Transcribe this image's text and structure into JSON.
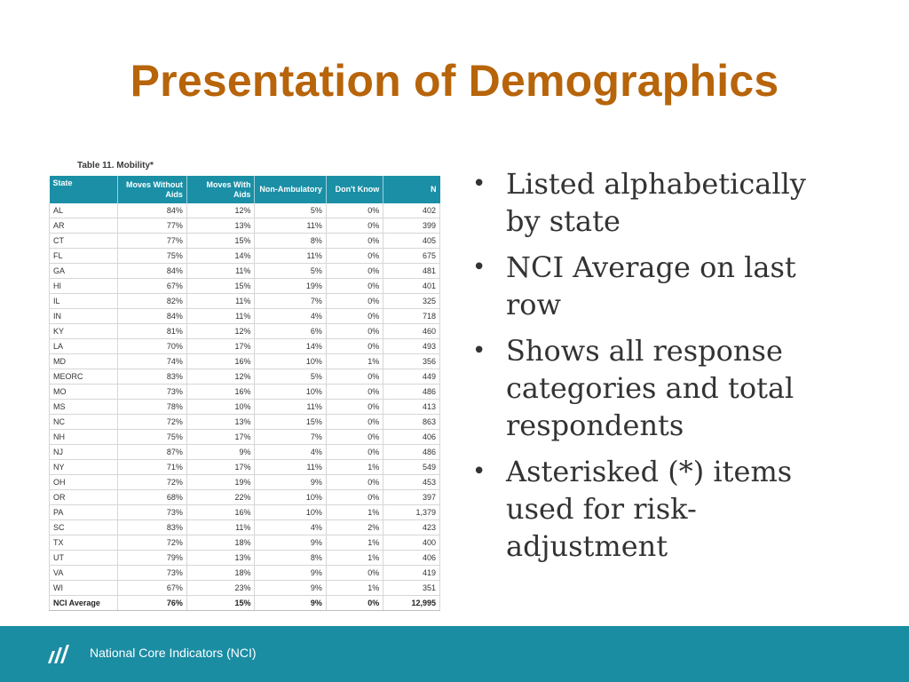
{
  "slide": {
    "title": "Presentation of Demographics"
  },
  "table": {
    "caption": "Table 11. Mobility*",
    "headers": [
      "State",
      "Moves Without Aids",
      "Moves With Aids",
      "Non-Ambulatory",
      "Don't Know",
      "N"
    ],
    "rows": [
      [
        "AL",
        "84%",
        "12%",
        "5%",
        "0%",
        "402"
      ],
      [
        "AR",
        "77%",
        "13%",
        "11%",
        "0%",
        "399"
      ],
      [
        "CT",
        "77%",
        "15%",
        "8%",
        "0%",
        "405"
      ],
      [
        "FL",
        "75%",
        "14%",
        "11%",
        "0%",
        "675"
      ],
      [
        "GA",
        "84%",
        "11%",
        "5%",
        "0%",
        "481"
      ],
      [
        "HI",
        "67%",
        "15%",
        "19%",
        "0%",
        "401"
      ],
      [
        "IL",
        "82%",
        "11%",
        "7%",
        "0%",
        "325"
      ],
      [
        "IN",
        "84%",
        "11%",
        "4%",
        "0%",
        "718"
      ],
      [
        "KY",
        "81%",
        "12%",
        "6%",
        "0%",
        "460"
      ],
      [
        "LA",
        "70%",
        "17%",
        "14%",
        "0%",
        "493"
      ],
      [
        "MD",
        "74%",
        "16%",
        "10%",
        "1%",
        "356"
      ],
      [
        "MEORC",
        "83%",
        "12%",
        "5%",
        "0%",
        "449"
      ],
      [
        "MO",
        "73%",
        "16%",
        "10%",
        "0%",
        "486"
      ],
      [
        "MS",
        "78%",
        "10%",
        "11%",
        "0%",
        "413"
      ],
      [
        "NC",
        "72%",
        "13%",
        "15%",
        "0%",
        "863"
      ],
      [
        "NH",
        "75%",
        "17%",
        "7%",
        "0%",
        "406"
      ],
      [
        "NJ",
        "87%",
        "9%",
        "4%",
        "0%",
        "486"
      ],
      [
        "NY",
        "71%",
        "17%",
        "11%",
        "1%",
        "549"
      ],
      [
        "OH",
        "72%",
        "19%",
        "9%",
        "0%",
        "453"
      ],
      [
        "OR",
        "68%",
        "22%",
        "10%",
        "0%",
        "397"
      ],
      [
        "PA",
        "73%",
        "16%",
        "10%",
        "1%",
        "1,379"
      ],
      [
        "SC",
        "83%",
        "11%",
        "4%",
        "2%",
        "423"
      ],
      [
        "TX",
        "72%",
        "18%",
        "9%",
        "1%",
        "400"
      ],
      [
        "UT",
        "79%",
        "13%",
        "8%",
        "1%",
        "406"
      ],
      [
        "VA",
        "73%",
        "18%",
        "9%",
        "0%",
        "419"
      ],
      [
        "WI",
        "67%",
        "23%",
        "9%",
        "1%",
        "351"
      ]
    ],
    "average_row": [
      "NCI Average",
      "76%",
      "15%",
      "9%",
      "0%",
      "12,995"
    ]
  },
  "bullets": [
    {
      "marker": "•",
      "text": "Listed alphabetically by state"
    },
    {
      "marker": "•",
      "text": "NCI Average on last row"
    },
    {
      "marker": "•",
      "text": "Shows all response categories and total respondents"
    },
    {
      "marker": "•",
      "text": "Asterisked (*) items used for risk-adjustment"
    }
  ],
  "footer": {
    "text": "National Core Indicators (NCI)",
    "logo_icon": "nci-logo-icon"
  },
  "colors": {
    "title": "#b7640a",
    "table_header": "#1a8fa6",
    "footer_bar": "#1b8da3"
  }
}
